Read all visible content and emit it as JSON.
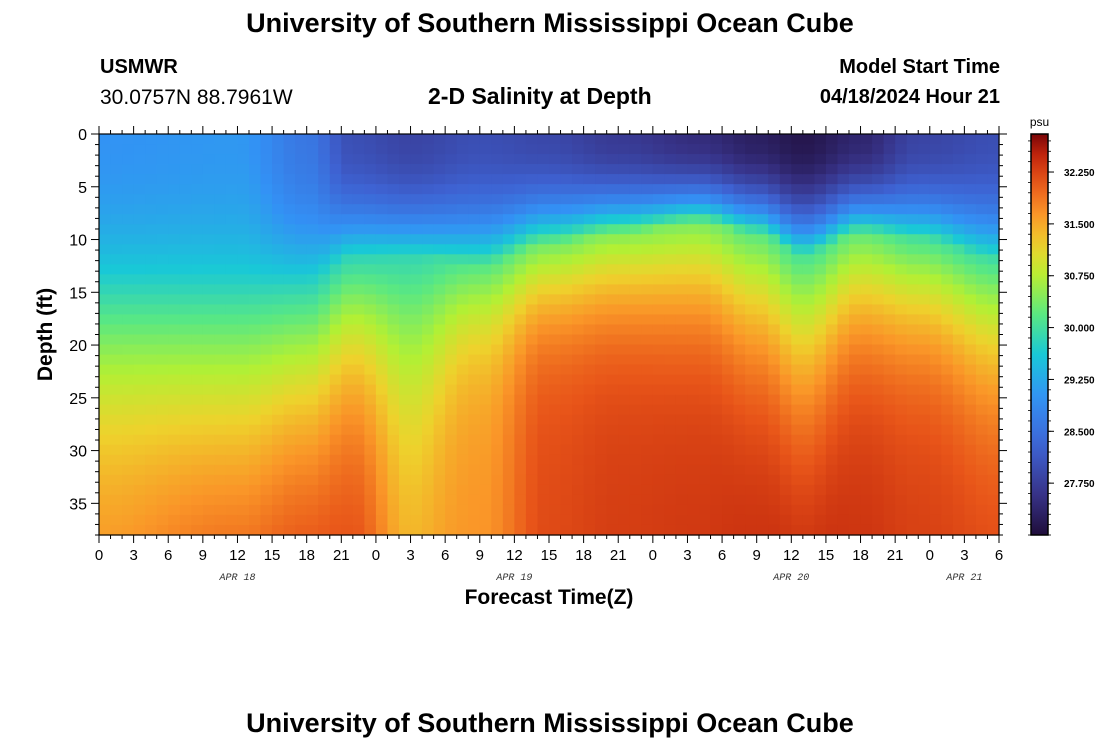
{
  "header": {
    "title": "University of Southern Mississippi Ocean Cube",
    "station_name": "USMWR",
    "coordinates": "30.0757N  88.7961W",
    "subtitle": "2-D Salinity at Depth",
    "model_start_label": "Model Start Time",
    "model_start_value": "04/18/2024 Hour 21"
  },
  "footer": {
    "title": "University of Southern Mississippi Ocean Cube"
  },
  "chart_data": {
    "type": "heatmap",
    "title": "2-D Salinity at Depth",
    "xlabel": "Forecast Time(Z)",
    "ylabel": "Depth (ft)",
    "x_tick_labels": [
      "0",
      "3",
      "6",
      "9",
      "12",
      "15",
      "18",
      "21",
      "0",
      "3",
      "6",
      "9",
      "12",
      "15",
      "18",
      "21",
      "0",
      "3",
      "6",
      "9",
      "12",
      "15",
      "18",
      "21",
      "0",
      "3",
      "6"
    ],
    "x_range_hours": [
      0,
      78
    ],
    "date_labels": [
      {
        "label": "APR 18",
        "hour": 12
      },
      {
        "label": "APR 19",
        "hour": 36
      },
      {
        "label": "APR 20",
        "hour": 60
      },
      {
        "label": "APR 21",
        "hour": 75
      }
    ],
    "y_ticks": [
      0,
      5,
      10,
      15,
      20,
      25,
      30,
      35
    ],
    "ylim": [
      0,
      38
    ],
    "colorbar": {
      "unit": "psu",
      "min": 27.0,
      "max": 32.8,
      "tick_labels": [
        "32.250",
        "31.500",
        "30.750",
        "30.000",
        "29.250",
        "28.500",
        "27.750"
      ],
      "tick_values": [
        32.25,
        31.5,
        30.75,
        30.0,
        29.25,
        28.5,
        27.75
      ]
    },
    "profile_keys": {
      "hours": [
        0,
        12,
        18,
        22,
        27,
        33,
        39,
        45,
        52,
        57,
        61,
        66,
        71,
        78
      ],
      "surface_psu": [
        29.0,
        29.05,
        28.6,
        28.0,
        27.85,
        28.0,
        27.9,
        27.7,
        27.5,
        27.3,
        27.15,
        27.4,
        27.85,
        28.0
      ],
      "halocline_depth_ft": [
        14.5,
        14.5,
        14.0,
        11.5,
        11.5,
        12.5,
        10.5,
        9.5,
        8.5,
        9.5,
        11.5,
        9.5,
        10.0,
        12.0
      ],
      "halocline_mid_psu": [
        29.8,
        29.8,
        29.75,
        29.8,
        29.85,
        30.15,
        30.35,
        30.45,
        30.4,
        30.2,
        30.05,
        30.25,
        30.05,
        30.0
      ],
      "gradient_psu_per_ft": [
        0.075,
        0.075,
        0.09,
        0.1,
        0.06,
        0.1,
        0.13,
        0.12,
        0.11,
        0.1,
        0.09,
        0.11,
        0.12,
        0.1
      ],
      "deep_max_psu": [
        31.8,
        32.35,
        32.4,
        32.25,
        31.55,
        31.65,
        32.2,
        32.3,
        32.35,
        32.45,
        32.55,
        32.4,
        32.3,
        32.25
      ]
    }
  }
}
